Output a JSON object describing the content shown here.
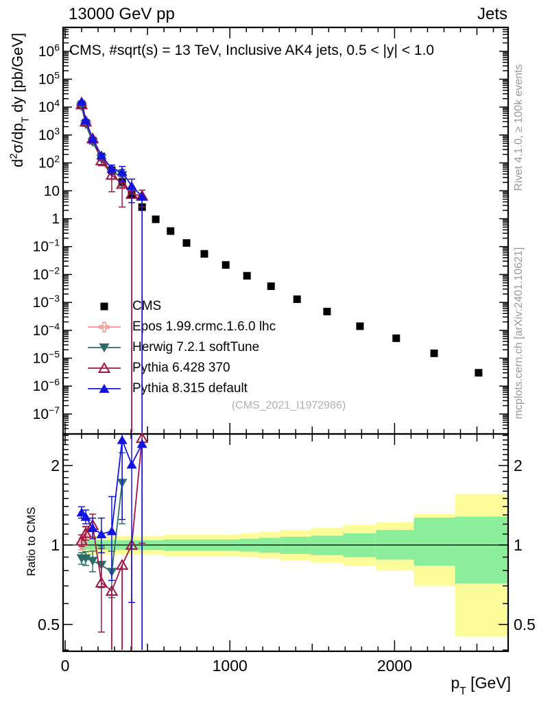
{
  "header": {
    "left": "13000 GeV pp",
    "right": "Jets"
  },
  "main_panel": {
    "inner_title": "CMS, #sqrt(s) = 13 TeV, Inclusive AK4 jets, 0.5 < |y| < 1.0",
    "ylabel_parts": {
      "d": "d",
      "sup2": "2",
      "sigma_dp": "σ/dp",
      "subT": "T",
      "rest": " dy [pb/GeV]"
    },
    "watermark": "(CMS_2021_I1972986)"
  },
  "ratio_panel": {
    "ylabel": "Ratio to CMS"
  },
  "xaxis": {
    "label_pre": "p",
    "label_sub": "T",
    "label_post": " [GeV]"
  },
  "side_notes": {
    "top": "Rivet 4.1.0, ≥ 100k events",
    "bottom": "mcplots.cern.ch [arXiv:2401.10621]"
  },
  "legend": [
    {
      "label": "CMS",
      "marker": "square-filled",
      "color": "#000000"
    },
    {
      "label": "Epos 1.99.crmc.1.6.0 lhc",
      "marker": "cross-open",
      "color": "#f2928e"
    },
    {
      "label": "Herwig 7.2.1 softTune",
      "marker": "triangle-down-filled",
      "color": "#2e6c6c"
    },
    {
      "label": "Pythia 6.428 370",
      "marker": "triangle-up-open",
      "color": "#a01446"
    },
    {
      "label": "Pythia 8.315 default",
      "marker": "triangle-up-filled",
      "color": "#1414e0"
    }
  ],
  "colors": {
    "band_outer": "#fcfc9a",
    "band_inner": "#8bee9b",
    "frame": "#000000",
    "watermark": "#b0b0b0",
    "side_note": "#999999"
  },
  "chart_data": [
    {
      "id": "spectrum",
      "type": "line",
      "title": "CMS, #sqrt(s) = 13 TeV, Inclusive AK4 jets, 0.5 < |y| < 1.0",
      "xlabel": "p_T [GeV]",
      "ylabel": "d^2sigma/dp_T dy [pb/GeV]",
      "xscale": "linear",
      "yscale": "log",
      "xlim": [
        0,
        2700
      ],
      "ylim": [
        2e-08,
        7000000
      ],
      "ytick_exponents": [
        6,
        5,
        4,
        3,
        2,
        1,
        0,
        -1,
        -2,
        -3,
        -4,
        -5,
        -6,
        -7
      ],
      "xticks": [
        0,
        1000,
        2000
      ],
      "series": [
        {
          "name": "CMS",
          "marker": "square-filled",
          "color": "#000000",
          "line": false,
          "pt": [
            100,
            125,
            167,
            220,
            283,
            346,
            404,
            467,
            550,
            640,
            737,
            845,
            975,
            1104,
            1250,
            1408,
            1590,
            1790,
            2010,
            2240,
            2510
          ],
          "y": [
            12000,
            2700,
            630,
            170,
            55,
            21,
            7.6,
            2.6,
            0.95,
            0.36,
            0.135,
            0.055,
            0.022,
            0.009,
            0.0038,
            0.0013,
            0.00047,
            0.00014,
            5.2e-05,
            1.5e-05,
            3e-06
          ]
        },
        {
          "name": "Epos 1.99.crmc.1.6.0 lhc",
          "marker": "cross-open",
          "color": "#f2928e",
          "line": true,
          "pt": [
            100,
            125
          ],
          "y": [
            12100,
            2900
          ],
          "err": [
            0.05,
            0.08
          ]
        },
        {
          "name": "Herwig 7.2.1 softTune",
          "marker": "triangle-down-filled",
          "color": "#2e6c6c",
          "line": true,
          "pt": [
            100,
            125,
            167,
            220,
            283,
            346
          ],
          "y": [
            10700,
            2400,
            548,
            143,
            43,
            36
          ],
          "err": [
            0.04,
            0.05,
            0.09,
            0.18,
            0.4,
            0.6
          ]
        },
        {
          "name": "Pythia 6.428 370",
          "marker": "triangle-up-open",
          "color": "#a01446",
          "line": true,
          "pt": [
            100,
            125,
            167,
            220,
            283,
            346,
            404,
            467
          ],
          "y": [
            12400,
            3000,
            750,
            122,
            37,
            17.5,
            7.6,
            6.6
          ],
          "err": [
            0.04,
            0.05,
            0.1,
            0.35,
            0.75,
            0.85,
            null,
            0.6
          ]
        },
        {
          "name": "Pythia 8.315 default",
          "marker": "triangle-up-filled",
          "color": "#1414e0",
          "line": true,
          "pt": [
            100,
            125,
            167,
            220,
            283,
            346,
            404,
            467
          ],
          "y": [
            16000,
            3450,
            730,
            187,
            62,
            48,
            15,
            6.2
          ],
          "err": [
            0.04,
            0.05,
            0.09,
            0.15,
            0.35,
            0.55,
            0.75,
            null
          ]
        }
      ]
    },
    {
      "id": "ratio",
      "type": "line",
      "ylabel": "Ratio to CMS",
      "yscale": "log",
      "ylim": [
        0.4,
        2.64
      ],
      "yticks": [
        0.5,
        1,
        2
      ],
      "reference_line": 1,
      "bands": [
        {
          "x0": 97,
          "x1": 600,
          "outer": [
            0.92,
            1.08
          ],
          "inner": [
            0.958,
            1.042
          ]
        },
        {
          "x0": 600,
          "x1": 1060,
          "outer": [
            0.905,
            1.095
          ],
          "inner": [
            0.95,
            1.05
          ]
        },
        {
          "x0": 1060,
          "x1": 1175,
          "outer": [
            0.9,
            1.107
          ],
          "inner": [
            0.944,
            1.056
          ]
        },
        {
          "x0": 1175,
          "x1": 1304,
          "outer": [
            0.89,
            1.12
          ],
          "inner": [
            0.935,
            1.065
          ]
        },
        {
          "x0": 1304,
          "x1": 1492,
          "outer": [
            0.875,
            1.14
          ],
          "inner": [
            0.925,
            1.075
          ]
        },
        {
          "x0": 1492,
          "x1": 1688,
          "outer": [
            0.857,
            1.16
          ],
          "inner": [
            0.915,
            1.085
          ]
        },
        {
          "x0": 1688,
          "x1": 1887,
          "outer": [
            0.835,
            1.19
          ],
          "inner": [
            0.9,
            1.107
          ]
        },
        {
          "x0": 1887,
          "x1": 2117,
          "outer": [
            0.8,
            1.22
          ],
          "inner": [
            0.88,
            1.14
          ]
        },
        {
          "x0": 2117,
          "x1": 2367,
          "outer": [
            0.7,
            1.31
          ],
          "inner": [
            0.835,
            1.27
          ]
        },
        {
          "x0": 2367,
          "x1": 2692,
          "outer": [
            0.45,
            1.56
          ],
          "inner": [
            0.715,
            1.28
          ]
        }
      ],
      "series": [
        {
          "name": "Epos 1.99.crmc.1.6.0 lhc",
          "marker": "cross-open",
          "color": "#f2928e",
          "line": true,
          "pt": [
            100,
            125
          ],
          "y": [
            1.01,
            1.08
          ],
          "err": [
            0.05,
            0.08
          ]
        },
        {
          "name": "Herwig 7.2.1 softTune",
          "marker": "triangle-down-filled",
          "color": "#2e6c6c",
          "line": true,
          "pt": [
            100,
            125,
            167,
            220,
            283,
            346
          ],
          "y": [
            0.89,
            0.89,
            0.87,
            0.84,
            0.79,
            1.72
          ],
          "err": [
            0.05,
            0.06,
            0.09,
            0.18,
            0.2,
            0.3
          ]
        },
        {
          "name": "Pythia 6.428 370",
          "marker": "triangle-up-open",
          "color": "#a01446",
          "line": true,
          "pt": [
            100,
            125,
            167,
            220,
            283,
            346,
            404,
            467
          ],
          "y": [
            1.04,
            1.11,
            1.19,
            0.72,
            0.67,
            0.84,
            1.0,
            2.54
          ],
          "err": [
            0.05,
            0.06,
            0.1,
            0.35,
            null,
            null,
            null,
            0.6
          ]
        },
        {
          "name": "Pythia 8.315 default",
          "marker": "triangle-up-filled",
          "color": "#1414e0",
          "line": true,
          "pt": [
            100,
            125,
            167,
            220,
            283,
            346,
            404,
            467
          ],
          "y": [
            1.33,
            1.28,
            1.16,
            1.1,
            1.13,
            2.5,
            2.02,
            2.42
          ],
          "err": [
            0.05,
            0.06,
            0.09,
            0.15,
            0.35,
            0.5,
            0.7,
            null
          ]
        }
      ]
    }
  ]
}
